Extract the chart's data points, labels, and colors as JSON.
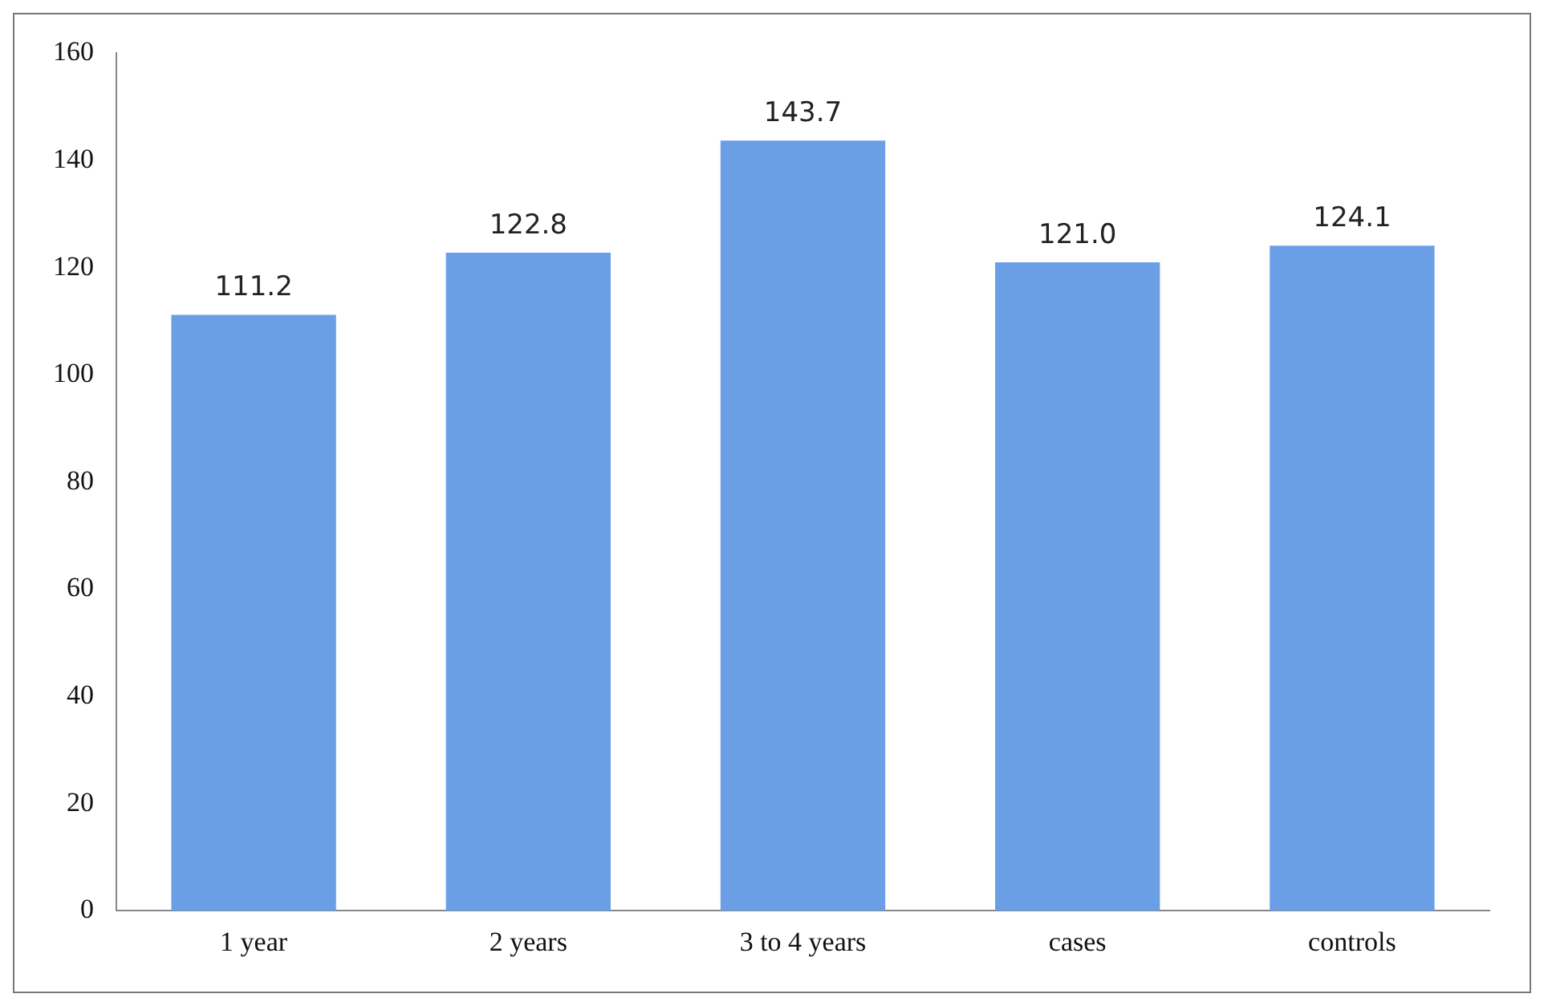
{
  "chart_data": {
    "type": "bar",
    "categories": [
      "1 year",
      "2 years",
      "3 to 4 years",
      "cases",
      "controls"
    ],
    "values": [
      111.2,
      122.8,
      143.7,
      121.0,
      124.1
    ],
    "value_labels": [
      "111.2",
      "122.8",
      "143.7",
      "121.0",
      "124.1"
    ],
    "color": "#6a9fe6",
    "ylim": [
      0,
      160
    ],
    "yticks": [
      0,
      20,
      40,
      60,
      80,
      100,
      120,
      140,
      160
    ],
    "grid": false,
    "legend": false
  }
}
